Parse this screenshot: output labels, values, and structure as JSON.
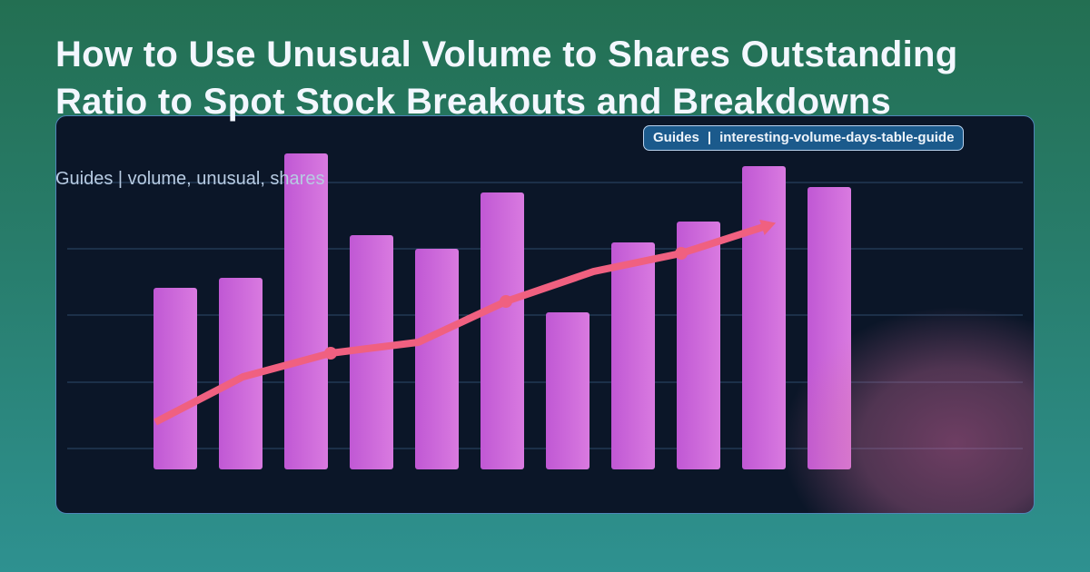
{
  "title": "How to Use Unusual Volume to Shares Outstanding Ratio to Spot Stock Breakouts and Breakdowns",
  "subtitle": "Guides | volume, unusual, shares",
  "badge": {
    "category": "Guides",
    "separator": "|",
    "slug": "interesting-volume-days-table-guide"
  },
  "colors": {
    "bar_start": "#c058d4",
    "bar_end": "#d97ae0",
    "line": "#f06080",
    "card": "#0b1628",
    "grid": "#2e4a6a"
  },
  "chart_data": {
    "type": "bar",
    "grid": true,
    "ylim": [
      0,
      380
    ],
    "bars": {
      "values": [
        200,
        211,
        348,
        258,
        243,
        305,
        173,
        250,
        273,
        334,
        311
      ]
    },
    "line": {
      "type": "line",
      "values": [
        52,
        102,
        128,
        140,
        185,
        218,
        238,
        269
      ],
      "markers_at": [
        2,
        4,
        6
      ],
      "end_marker": "triangle"
    },
    "gridlines": [
      23,
      96,
      170,
      243,
      316
    ]
  }
}
